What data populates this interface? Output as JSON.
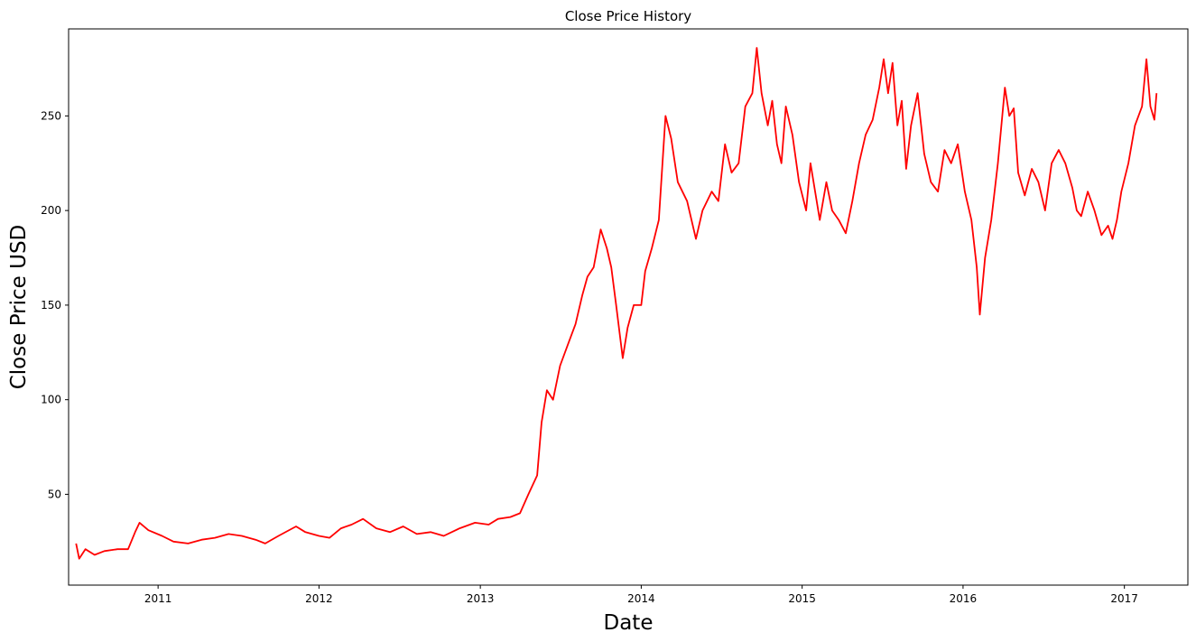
{
  "chart_data": {
    "type": "line",
    "title": "Close Price History",
    "xlabel": "Date",
    "ylabel": "Close Price USD",
    "xlim": [
      "2010-06-12",
      "2017-05-25"
    ],
    "ylim": [
      2,
      296
    ],
    "x_ticks": [
      {
        "date": "2011-01-01",
        "label": "2011"
      },
      {
        "date": "2012-01-01",
        "label": "2012"
      },
      {
        "date": "2013-01-01",
        "label": "2013"
      },
      {
        "date": "2014-01-01",
        "label": "2014"
      },
      {
        "date": "2015-01-01",
        "label": "2015"
      },
      {
        "date": "2016-01-01",
        "label": "2016"
      },
      {
        "date": "2017-01-01",
        "label": "2017"
      }
    ],
    "y_ticks": [
      50,
      100,
      150,
      200,
      250
    ],
    "grid": false,
    "series": [
      {
        "color": "#ff0000",
        "points": [
          [
            "2010-06-29",
            24
          ],
          [
            "2010-07-06",
            16
          ],
          [
            "2010-07-20",
            21
          ],
          [
            "2010-08-10",
            18
          ],
          [
            "2010-09-01",
            20
          ],
          [
            "2010-10-01",
            21
          ],
          [
            "2010-10-25",
            21
          ],
          [
            "2010-11-10",
            30
          ],
          [
            "2010-11-20",
            35
          ],
          [
            "2010-12-10",
            31
          ],
          [
            "2011-01-10",
            28
          ],
          [
            "2011-02-05",
            25
          ],
          [
            "2011-03-10",
            24
          ],
          [
            "2011-04-10",
            26
          ],
          [
            "2011-05-10",
            27
          ],
          [
            "2011-06-10",
            29
          ],
          [
            "2011-07-10",
            28
          ],
          [
            "2011-08-10",
            26
          ],
          [
            "2011-09-01",
            24
          ],
          [
            "2011-10-01",
            28
          ],
          [
            "2011-11-10",
            33
          ],
          [
            "2011-12-01",
            30
          ],
          [
            "2012-01-01",
            28
          ],
          [
            "2012-01-25",
            27
          ],
          [
            "2012-02-20",
            32
          ],
          [
            "2012-03-15",
            34
          ],
          [
            "2012-04-10",
            37
          ],
          [
            "2012-05-10",
            32
          ],
          [
            "2012-06-10",
            30
          ],
          [
            "2012-07-10",
            33
          ],
          [
            "2012-08-10",
            29
          ],
          [
            "2012-09-10",
            30
          ],
          [
            "2012-10-10",
            28
          ],
          [
            "2012-11-15",
            32
          ],
          [
            "2012-12-20",
            35
          ],
          [
            "2013-01-20",
            34
          ],
          [
            "2013-02-10",
            37
          ],
          [
            "2013-03-10",
            38
          ],
          [
            "2013-04-01",
            40
          ],
          [
            "2013-04-20",
            50
          ],
          [
            "2013-05-10",
            60
          ],
          [
            "2013-05-20",
            88
          ],
          [
            "2013-06-01",
            105
          ],
          [
            "2013-06-15",
            100
          ],
          [
            "2013-07-01",
            118
          ],
          [
            "2013-07-20",
            130
          ],
          [
            "2013-08-05",
            140
          ],
          [
            "2013-08-20",
            155
          ],
          [
            "2013-09-01",
            165
          ],
          [
            "2013-09-15",
            170
          ],
          [
            "2013-10-01",
            190
          ],
          [
            "2013-10-15",
            180
          ],
          [
            "2013-10-25",
            170
          ],
          [
            "2013-11-05",
            150
          ],
          [
            "2013-11-20",
            122
          ],
          [
            "2013-12-01",
            138
          ],
          [
            "2013-12-15",
            150
          ],
          [
            "2014-01-01",
            150
          ],
          [
            "2014-01-10",
            168
          ],
          [
            "2014-01-25",
            180
          ],
          [
            "2014-02-10",
            195
          ],
          [
            "2014-02-25",
            250
          ],
          [
            "2014-03-10",
            238
          ],
          [
            "2014-03-25",
            215
          ],
          [
            "2014-04-15",
            205
          ],
          [
            "2014-05-05",
            185
          ],
          [
            "2014-05-20",
            200
          ],
          [
            "2014-06-10",
            210
          ],
          [
            "2014-06-25",
            205
          ],
          [
            "2014-07-10",
            235
          ],
          [
            "2014-07-25",
            220
          ],
          [
            "2014-08-10",
            225
          ],
          [
            "2014-08-25",
            255
          ],
          [
            "2014-09-10",
            262
          ],
          [
            "2014-09-20",
            286
          ],
          [
            "2014-10-01",
            262
          ],
          [
            "2014-10-15",
            245
          ],
          [
            "2014-10-25",
            258
          ],
          [
            "2014-11-05",
            235
          ],
          [
            "2014-11-15",
            225
          ],
          [
            "2014-11-25",
            255
          ],
          [
            "2014-12-10",
            240
          ],
          [
            "2014-12-25",
            215
          ],
          [
            "2015-01-10",
            200
          ],
          [
            "2015-01-20",
            225
          ],
          [
            "2015-02-10",
            195
          ],
          [
            "2015-02-25",
            215
          ],
          [
            "2015-03-10",
            200
          ],
          [
            "2015-03-25",
            195
          ],
          [
            "2015-04-10",
            188
          ],
          [
            "2015-04-25",
            205
          ],
          [
            "2015-05-10",
            225
          ],
          [
            "2015-05-25",
            240
          ],
          [
            "2015-06-10",
            248
          ],
          [
            "2015-06-25",
            265
          ],
          [
            "2015-07-05",
            280
          ],
          [
            "2015-07-15",
            262
          ],
          [
            "2015-07-25",
            278
          ],
          [
            "2015-08-05",
            245
          ],
          [
            "2015-08-15",
            258
          ],
          [
            "2015-08-25",
            222
          ],
          [
            "2015-09-05",
            245
          ],
          [
            "2015-09-20",
            262
          ],
          [
            "2015-10-05",
            230
          ],
          [
            "2015-10-20",
            215
          ],
          [
            "2015-11-05",
            210
          ],
          [
            "2015-11-20",
            232
          ],
          [
            "2015-12-05",
            225
          ],
          [
            "2015-12-20",
            235
          ],
          [
            "2016-01-05",
            210
          ],
          [
            "2016-01-20",
            195
          ],
          [
            "2016-02-01",
            170
          ],
          [
            "2016-02-08",
            145
          ],
          [
            "2016-02-20",
            175
          ],
          [
            "2016-03-05",
            195
          ],
          [
            "2016-03-20",
            225
          ],
          [
            "2016-04-05",
            265
          ],
          [
            "2016-04-15",
            250
          ],
          [
            "2016-04-25",
            254
          ],
          [
            "2016-05-05",
            220
          ],
          [
            "2016-05-20",
            208
          ],
          [
            "2016-06-05",
            222
          ],
          [
            "2016-06-20",
            215
          ],
          [
            "2016-07-05",
            200
          ],
          [
            "2016-07-20",
            225
          ],
          [
            "2016-08-05",
            232
          ],
          [
            "2016-08-20",
            225
          ],
          [
            "2016-09-05",
            212
          ],
          [
            "2016-09-15",
            200
          ],
          [
            "2016-09-25",
            197
          ],
          [
            "2016-10-10",
            210
          ],
          [
            "2016-10-25",
            200
          ],
          [
            "2016-11-10",
            187
          ],
          [
            "2016-11-25",
            192
          ],
          [
            "2016-12-05",
            185
          ],
          [
            "2016-12-15",
            195
          ],
          [
            "2016-12-25",
            210
          ],
          [
            "2017-01-10",
            225
          ],
          [
            "2017-01-25",
            245
          ],
          [
            "2017-02-10",
            255
          ],
          [
            "2017-02-20",
            280
          ],
          [
            "2017-03-01",
            255
          ],
          [
            "2017-03-10",
            248
          ],
          [
            "2017-03-15",
            262
          ]
        ]
      }
    ]
  }
}
